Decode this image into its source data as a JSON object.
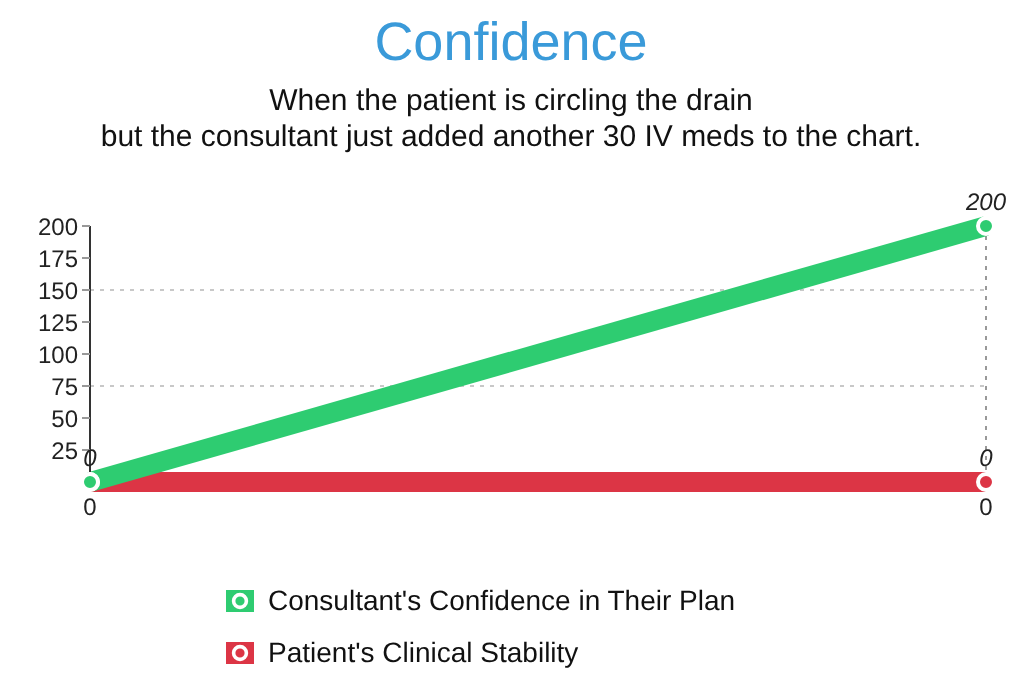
{
  "chart_data": {
    "type": "line",
    "title": "Confidence",
    "subtitle": "When the patient is circling the drain\nbut the consultant just added another 30 IV meds to the chart.",
    "categories": [
      "0",
      "0"
    ],
    "series": [
      {
        "name": "Consultant's Confidence in Their Plan",
        "color": "#2ecc71",
        "values": [
          0,
          200
        ],
        "value_labels": [
          "0",
          "200"
        ]
      },
      {
        "name": "Patient's Clinical Stability",
        "color": "#dc3545",
        "values": [
          0,
          0
        ],
        "value_labels": [
          null,
          "0"
        ]
      }
    ],
    "ylim": [
      0,
      200
    ],
    "yticks": [
      25,
      50,
      75,
      100,
      125,
      150,
      175,
      200
    ],
    "grid": "x",
    "ref_lines": [
      {
        "axis": "y",
        "value": 75,
        "color": "#c8c8c8",
        "line_style": "dotted"
      },
      {
        "axis": "y",
        "value": 150,
        "color": "#c8c8c8",
        "line_style": "dotted"
      }
    ],
    "marker": "circle",
    "line_style": "solid",
    "legend": "bottom"
  }
}
